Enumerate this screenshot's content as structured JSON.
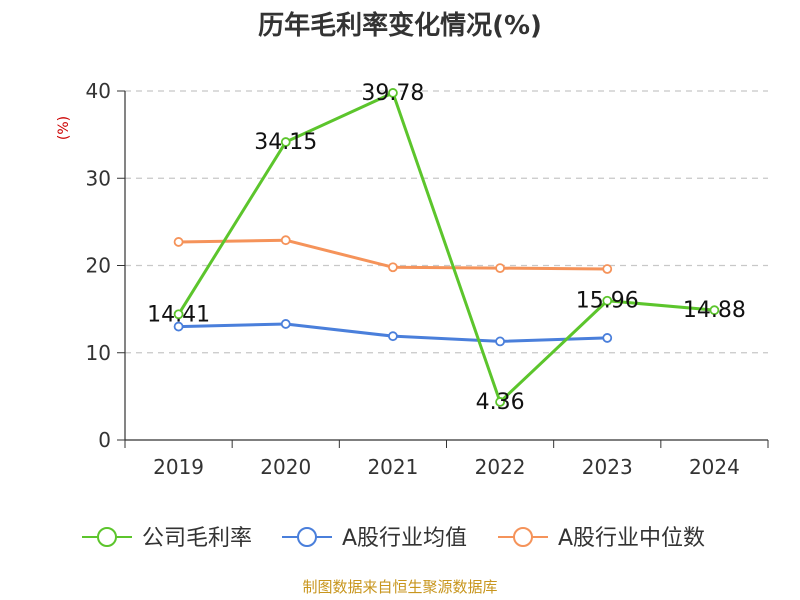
{
  "chart_data": {
    "type": "line",
    "title": "历年毛利率变化情况(%)",
    "ylabel": "(%)",
    "xlabel": "",
    "categories": [
      "2019",
      "2020",
      "2021",
      "2022",
      "2023",
      "2024"
    ],
    "ylim": [
      0,
      40
    ],
    "yticks": [
      0,
      10,
      20,
      30,
      40
    ],
    "grid": "horizontal dashed",
    "legend_position": "bottom",
    "series": [
      {
        "name": "公司毛利率",
        "color": "#5cc52c",
        "values": [
          14.41,
          34.15,
          39.78,
          4.36,
          15.96,
          14.88
        ],
        "labels": [
          "14.41",
          "34.15",
          "39.78",
          "4.36",
          "15.96",
          "14.88"
        ]
      },
      {
        "name": "A股行业均值",
        "color": "#4a7fdb",
        "values": [
          13.0,
          13.3,
          11.9,
          11.3,
          11.7,
          null
        ]
      },
      {
        "name": "A股行业中位数",
        "color": "#f5935a",
        "values": [
          22.7,
          22.9,
          19.8,
          19.7,
          19.6,
          null
        ]
      }
    ]
  },
  "source": "制图数据来自恒生聚源数据库"
}
